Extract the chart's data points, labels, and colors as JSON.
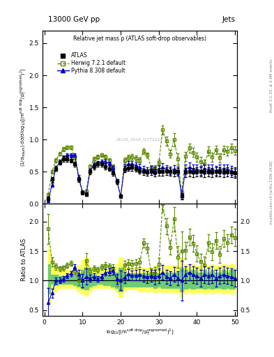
{
  "title_top": "13000 GeV pp",
  "title_right": "Jets",
  "main_title": "Relative jet mass ρ (ATLAS soft-drop observables)",
  "watermark": "ATLAS_2019_I1772223",
  "right_label_top": "Rivet 3.1.10, ≥ 2.9M events",
  "right_label_bot": "mcplots.cern.ch [arXiv:1306.3436]",
  "xlabel": "log$_{10}$[(m$^{\\mathrm{soft~drop}}$/p$_T^{\\mathrm{ungroomed}}$)$^2$]",
  "ylabel_main": "(1/σ$_{\\mathrm{resum}}$) dσ/d log$_{10}$[(m$^{\\mathrm{soft~drop}}$/p$_T^{\\mathrm{ungroomed}}$)$^2$]",
  "ylabel_ratio": "Ratio to ATLAS",
  "xlim": [
    -0.5,
    50.5
  ],
  "ylim_main": [
    0,
    2.7
  ],
  "ylim_ratio": [
    0.4,
    2.3
  ],
  "legend_entries": [
    "ATLAS",
    "Herwig 7.2.1 default",
    "Pythia 8.308 default"
  ],
  "atlas_x": [
    1,
    2,
    3,
    4,
    5,
    6,
    7,
    8,
    9,
    10,
    11,
    12,
    13,
    14,
    15,
    16,
    17,
    18,
    19,
    20,
    21,
    22,
    23,
    24,
    25,
    26,
    27,
    28,
    29,
    30,
    31,
    32,
    33,
    34,
    35,
    36,
    37,
    38,
    39,
    40,
    41,
    42,
    43,
    44,
    45,
    46,
    47,
    48,
    49,
    50
  ],
  "atlas_y": [
    0.08,
    0.38,
    0.55,
    0.65,
    0.7,
    0.7,
    0.68,
    0.62,
    0.38,
    0.18,
    0.15,
    0.5,
    0.58,
    0.62,
    0.62,
    0.58,
    0.55,
    0.48,
    0.35,
    0.12,
    0.54,
    0.56,
    0.57,
    0.55,
    0.52,
    0.5,
    0.49,
    0.5,
    0.49,
    0.5,
    0.5,
    0.51,
    0.5,
    0.49,
    0.5,
    0.12,
    0.49,
    0.5,
    0.49,
    0.5,
    0.5,
    0.49,
    0.5,
    0.49,
    0.5,
    0.5,
    0.49,
    0.5,
    0.49,
    0.48
  ],
  "atlas_yerr": [
    0.03,
    0.04,
    0.04,
    0.04,
    0.04,
    0.04,
    0.04,
    0.04,
    0.04,
    0.03,
    0.03,
    0.04,
    0.04,
    0.04,
    0.04,
    0.04,
    0.04,
    0.04,
    0.04,
    0.03,
    0.05,
    0.05,
    0.05,
    0.05,
    0.05,
    0.05,
    0.05,
    0.05,
    0.06,
    0.06,
    0.06,
    0.06,
    0.06,
    0.06,
    0.06,
    0.05,
    0.07,
    0.07,
    0.07,
    0.07,
    0.07,
    0.07,
    0.07,
    0.07,
    0.07,
    0.07,
    0.07,
    0.07,
    0.07,
    0.07
  ],
  "herwig_x": [
    1,
    2,
    3,
    4,
    5,
    6,
    7,
    8,
    9,
    10,
    11,
    12,
    13,
    14,
    15,
    16,
    17,
    18,
    19,
    20,
    21,
    22,
    23,
    24,
    25,
    26,
    27,
    28,
    29,
    30,
    31,
    32,
    33,
    34,
    35,
    36,
    37,
    38,
    39,
    40,
    41,
    42,
    43,
    44,
    45,
    46,
    47,
    48,
    49,
    50
  ],
  "herwig_y": [
    0.15,
    0.5,
    0.68,
    0.78,
    0.85,
    0.88,
    0.88,
    0.72,
    0.38,
    0.18,
    0.2,
    0.58,
    0.7,
    0.73,
    0.76,
    0.73,
    0.68,
    0.58,
    0.35,
    0.12,
    0.68,
    0.72,
    0.73,
    0.71,
    0.68,
    0.82,
    0.76,
    0.56,
    0.55,
    0.64,
    1.15,
    0.98,
    0.78,
    1.0,
    0.7,
    0.18,
    0.74,
    0.87,
    0.8,
    0.73,
    0.66,
    0.62,
    0.82,
    0.73,
    0.84,
    0.72,
    0.84,
    0.82,
    0.87,
    0.83
  ],
  "herwig_yerr": [
    0.02,
    0.03,
    0.03,
    0.03,
    0.03,
    0.03,
    0.03,
    0.03,
    0.03,
    0.02,
    0.02,
    0.03,
    0.03,
    0.03,
    0.03,
    0.03,
    0.03,
    0.03,
    0.03,
    0.02,
    0.04,
    0.04,
    0.04,
    0.04,
    0.04,
    0.04,
    0.04,
    0.04,
    0.05,
    0.05,
    0.07,
    0.07,
    0.06,
    0.1,
    0.09,
    0.04,
    0.07,
    0.07,
    0.07,
    0.07,
    0.07,
    0.07,
    0.07,
    0.07,
    0.07,
    0.07,
    0.07,
    0.07,
    0.07,
    0.07
  ],
  "pythia_x": [
    1,
    2,
    3,
    4,
    5,
    6,
    7,
    8,
    9,
    10,
    11,
    12,
    13,
    14,
    15,
    16,
    17,
    18,
    19,
    20,
    21,
    22,
    23,
    24,
    25,
    26,
    27,
    28,
    29,
    30,
    31,
    32,
    33,
    34,
    35,
    36,
    37,
    38,
    39,
    40,
    41,
    42,
    43,
    44,
    45,
    46,
    47,
    48,
    49,
    50
  ],
  "pythia_y": [
    0.05,
    0.3,
    0.55,
    0.65,
    0.72,
    0.76,
    0.76,
    0.76,
    0.42,
    0.18,
    0.16,
    0.52,
    0.62,
    0.64,
    0.66,
    0.66,
    0.63,
    0.56,
    0.36,
    0.12,
    0.57,
    0.62,
    0.62,
    0.6,
    0.57,
    0.54,
    0.52,
    0.54,
    0.52,
    0.54,
    0.57,
    0.54,
    0.52,
    0.54,
    0.52,
    0.12,
    0.54,
    0.57,
    0.54,
    0.54,
    0.52,
    0.54,
    0.54,
    0.54,
    0.52,
    0.54,
    0.54,
    0.54,
    0.52,
    0.5
  ],
  "pythia_yerr": [
    0.02,
    0.03,
    0.03,
    0.03,
    0.03,
    0.03,
    0.03,
    0.03,
    0.03,
    0.02,
    0.02,
    0.03,
    0.03,
    0.03,
    0.03,
    0.03,
    0.03,
    0.03,
    0.03,
    0.02,
    0.05,
    0.05,
    0.05,
    0.05,
    0.05,
    0.05,
    0.05,
    0.05,
    0.06,
    0.06,
    0.06,
    0.06,
    0.06,
    0.06,
    0.06,
    0.04,
    0.07,
    0.07,
    0.07,
    0.07,
    0.07,
    0.07,
    0.07,
    0.07,
    0.07,
    0.07,
    0.07,
    0.07,
    0.07,
    0.07
  ],
  "colors": {
    "atlas": "#000000",
    "herwig": "#5c8a00",
    "pythia": "#0000cc",
    "yellow_band": "#ffff60",
    "green_band": "#70cc70"
  },
  "xticks": [
    0,
    10,
    20,
    30,
    40,
    50
  ],
  "yticks_main": [
    0.0,
    0.5,
    1.0,
    1.5,
    2.0,
    2.5
  ],
  "yticks_ratio": [
    0.5,
    1.0,
    1.5,
    2.0
  ],
  "band_yellow_lo": [
    0.62,
    0.88,
    0.82,
    0.88,
    0.88,
    0.88,
    0.88,
    0.88,
    0.82,
    0.78,
    0.75,
    0.82,
    0.88,
    0.88,
    0.88,
    0.88,
    0.88,
    0.85,
    0.8,
    0.72,
    0.82,
    0.85,
    0.85,
    0.85,
    0.82,
    0.82,
    0.82,
    0.82,
    0.8,
    0.82,
    0.8,
    0.8,
    0.8,
    0.8,
    0.8,
    0.72,
    0.78,
    0.8,
    0.78,
    0.8,
    0.8,
    0.78,
    0.8,
    0.78,
    0.8,
    0.8,
    0.78,
    0.8,
    0.78,
    0.78
  ],
  "band_yellow_hi": [
    1.55,
    1.28,
    1.22,
    1.18,
    1.18,
    1.18,
    1.18,
    1.18,
    1.25,
    1.35,
    1.38,
    1.22,
    1.18,
    1.18,
    1.18,
    1.18,
    1.18,
    1.2,
    1.28,
    1.4,
    1.22,
    1.2,
    1.2,
    1.2,
    1.22,
    1.22,
    1.22,
    1.22,
    1.25,
    1.22,
    1.25,
    1.25,
    1.25,
    1.25,
    1.25,
    1.4,
    1.28,
    1.25,
    1.28,
    1.25,
    1.25,
    1.28,
    1.25,
    1.28,
    1.25,
    1.25,
    1.28,
    1.25,
    1.28,
    1.28
  ],
  "band_green_lo": [
    0.78,
    0.94,
    0.92,
    0.94,
    0.94,
    0.94,
    0.94,
    0.92,
    0.9,
    0.86,
    0.85,
    0.9,
    0.92,
    0.94,
    0.94,
    0.92,
    0.92,
    0.9,
    0.88,
    0.82,
    0.9,
    0.9,
    0.9,
    0.9,
    0.9,
    0.9,
    0.9,
    0.9,
    0.88,
    0.9,
    0.88,
    0.88,
    0.88,
    0.88,
    0.88,
    0.82,
    0.86,
    0.88,
    0.86,
    0.88,
    0.88,
    0.86,
    0.88,
    0.86,
    0.88,
    0.88,
    0.86,
    0.88,
    0.86,
    0.86
  ],
  "band_green_hi": [
    1.28,
    1.1,
    1.1,
    1.08,
    1.08,
    1.08,
    1.08,
    1.1,
    1.12,
    1.18,
    1.2,
    1.12,
    1.1,
    1.08,
    1.08,
    1.1,
    1.1,
    1.12,
    1.14,
    1.22,
    1.12,
    1.12,
    1.12,
    1.12,
    1.12,
    1.12,
    1.12,
    1.12,
    1.14,
    1.12,
    1.14,
    1.14,
    1.14,
    1.14,
    1.14,
    1.22,
    1.18,
    1.14,
    1.18,
    1.14,
    1.14,
    1.18,
    1.14,
    1.18,
    1.14,
    1.14,
    1.18,
    1.14,
    1.18,
    1.18
  ]
}
